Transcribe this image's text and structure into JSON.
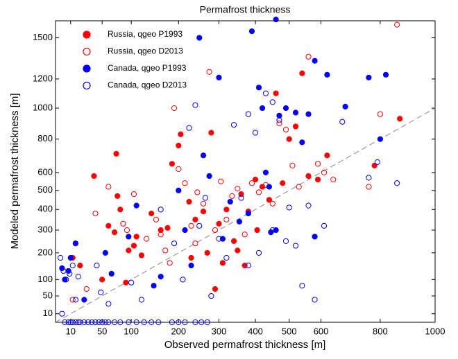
{
  "chart_data": {
    "type": "scatter",
    "title": "Permafrost thickness",
    "x_label": "Observed permafrost thickness [m]",
    "y_label": "Modeled permafrost thickness [m]",
    "xlim": [
      0,
      1000
    ],
    "ylim": [
      0,
      1630
    ],
    "xticks": [
      10,
      50,
      100,
      200,
      300,
      400,
      500,
      600,
      800,
      1000
    ],
    "yticks": [
      10,
      50,
      100,
      200,
      300,
      400,
      500,
      600,
      800,
      1000,
      1200,
      1500
    ],
    "legend": "upper left",
    "series": [
      {
        "name": "Russia, qgeo P1993",
        "color": "#ff0000",
        "filled": true,
        "x": [
          12,
          20,
          38,
          73,
          75,
          80,
          70,
          95,
          105,
          90,
          110,
          140,
          160,
          175,
          185,
          200,
          205,
          225,
          240,
          260,
          270,
          280,
          290,
          300,
          320,
          340,
          350,
          360,
          380,
          400,
          420,
          440,
          460,
          480,
          500,
          520,
          540,
          560,
          590,
          620,
          780,
          870,
          60,
          50,
          120,
          230,
          310,
          370,
          405
        ],
        "values": [
          180,
          150,
          580,
          710,
          470,
          400,
          290,
          210,
          230,
          90,
          270,
          380,
          300,
          310,
          650,
          760,
          830,
          440,
          350,
          390,
          200,
          840,
          70,
          330,
          400,
          250,
          210,
          480,
          390,
          560,
          520,
          450,
          1100,
          540,
          800,
          880,
          1240,
          580,
          560,
          700,
          640,
          930,
          320,
          100,
          190,
          180,
          160,
          150,
          300
        ]
      },
      {
        "name": "Russia, qgeo D2013",
        "color": "#ff0000",
        "filled": false,
        "x": [
          15,
          40,
          28,
          12,
          60,
          85,
          92,
          105,
          130,
          150,
          160,
          170,
          190,
          200,
          215,
          230,
          245,
          260,
          275,
          290,
          305,
          320,
          335,
          350,
          370,
          390,
          410,
          430,
          450,
          470,
          490,
          510,
          530,
          560,
          590,
          610,
          640,
          760,
          860,
          800,
          240,
          180
        ],
        "values": [
          240,
          380,
          70,
          40,
          520,
          330,
          300,
          480,
          260,
          350,
          280,
          210,
          1000,
          620,
          540,
          320,
          490,
          430,
          1250,
          300,
          550,
          350,
          470,
          510,
          280,
          540,
          490,
          530,
          430,
          900,
          860,
          640,
          520,
          1360,
          650,
          600,
          560,
          520,
          1600,
          960,
          240,
          160
        ]
      },
      {
        "name": "Canada, qgeo P1993",
        "color": "#0000ff",
        "filled": true,
        "x": [
          3,
          5,
          8,
          10,
          15,
          25,
          55,
          65,
          95,
          110,
          145,
          160,
          200,
          215,
          230,
          250,
          260,
          275,
          300,
          310,
          330,
          355,
          380,
          390,
          420,
          430,
          445,
          460,
          470,
          490,
          520,
          540,
          560,
          580,
          620,
          680,
          760,
          820,
          800,
          580,
          410,
          440,
          460
        ],
        "values": [
          140,
          100,
          130,
          180,
          240,
          40,
          200,
          120,
          270,
          420,
          80,
          110,
          500,
          300,
          150,
          1500,
          700,
          580,
          1210,
          260,
          440,
          340,
          380,
          1550,
          1000,
          600,
          290,
          1640,
          950,
          1000,
          970,
          780,
          960,
          1330,
          1230,
          1010,
          1210,
          1230,
          800,
          270,
          1140,
          520,
          300
        ]
      },
      {
        "name": "Canada, qgeo D2013",
        "color": "#0000ff",
        "filled": false,
        "x": [
          2,
          4,
          6,
          9,
          12,
          15,
          18,
          3,
          42,
          48,
          60,
          100,
          120,
          160,
          190,
          210,
          225,
          240,
          250,
          265,
          280,
          300,
          320,
          340,
          360,
          380,
          400,
          410,
          430,
          450,
          470,
          500,
          520,
          540,
          560,
          580,
          610,
          670,
          760,
          790,
          860,
          380,
          450,
          490,
          5,
          8,
          10,
          12,
          15,
          18,
          20,
          25,
          30,
          35,
          40,
          45,
          50,
          55,
          60,
          70,
          80,
          95,
          110,
          125,
          140,
          155,
          185,
          200,
          215,
          240,
          255,
          270
        ],
        "values": [
          180,
          130,
          100,
          120,
          150,
          40,
          110,
          10,
          150,
          60,
          30,
          90,
          40,
          400,
          240,
          100,
          870,
          1020,
          320,
          460,
          50,
          260,
          180,
          890,
          460,
          960,
          840,
          200,
          1100,
          1040,
          920,
          410,
          230,
          80,
          420,
          40,
          320,
          910,
          570,
          660,
          540,
          150,
          300,
          250,
          0,
          0,
          0,
          0,
          0,
          0,
          0,
          0,
          0,
          0,
          0,
          0,
          0,
          0,
          0,
          0,
          0,
          0,
          0,
          0,
          0,
          0,
          0,
          0,
          0,
          0,
          0,
          0
        ]
      }
    ]
  }
}
